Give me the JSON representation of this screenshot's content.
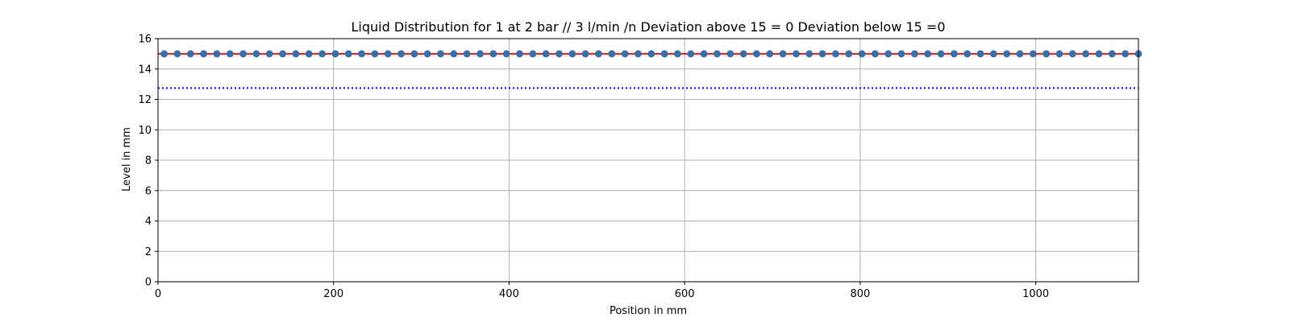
{
  "chart_data": {
    "type": "scatter",
    "title": "Liquid Distribution for 1 at 2 bar // 3 l/min /n Deviation above 15 = 0 Deviation below 15 =0",
    "xlabel": "Position in mm",
    "ylabel": "Level in mm",
    "xlim": [
      0,
      1117
    ],
    "ylim": [
      0,
      16
    ],
    "xticks": [
      0,
      200,
      400,
      600,
      800,
      1000
    ],
    "yticks": [
      0,
      2,
      4,
      6,
      8,
      10,
      12,
      14,
      16
    ],
    "grid": true,
    "reference_lines": [
      {
        "y": 15,
        "color": "#e41a1c",
        "style": "solid"
      },
      {
        "y": 12.75,
        "color": "#0000ff",
        "style": "dotted"
      }
    ],
    "series": [
      {
        "marker_color": "#3a6ea5",
        "line_color": "#e41a1c",
        "x": [
          7,
          22,
          37,
          52,
          67,
          82,
          97,
          112,
          127,
          142,
          157,
          172,
          187,
          202,
          217,
          232,
          247,
          262,
          277,
          292,
          307,
          322,
          337,
          352,
          367,
          382,
          397,
          412,
          427,
          442,
          457,
          472,
          487,
          502,
          517,
          532,
          547,
          562,
          577,
          592,
          607,
          622,
          637,
          652,
          667,
          682,
          697,
          712,
          727,
          742,
          757,
          772,
          787,
          802,
          817,
          832,
          847,
          862,
          877,
          892,
          907,
          922,
          937,
          952,
          967,
          982,
          997,
          1012,
          1027,
          1042,
          1057,
          1072,
          1087,
          1102,
          1117
        ],
        "y": [
          15,
          15,
          15,
          15,
          15,
          15,
          15,
          15,
          15,
          15,
          15,
          15,
          15,
          15,
          15,
          15,
          15,
          15,
          15,
          15,
          15,
          15,
          15,
          15,
          15,
          15,
          15,
          15,
          15,
          15,
          15,
          15,
          15,
          15,
          15,
          15,
          15,
          15,
          15,
          15,
          15,
          15,
          15,
          15,
          15,
          15,
          15,
          15,
          15,
          15,
          15,
          15,
          15,
          15,
          15,
          15,
          15,
          15,
          15,
          15,
          15,
          15,
          15,
          15,
          15,
          15,
          15,
          15,
          15,
          15,
          15,
          15,
          15,
          15,
          15
        ]
      }
    ]
  }
}
